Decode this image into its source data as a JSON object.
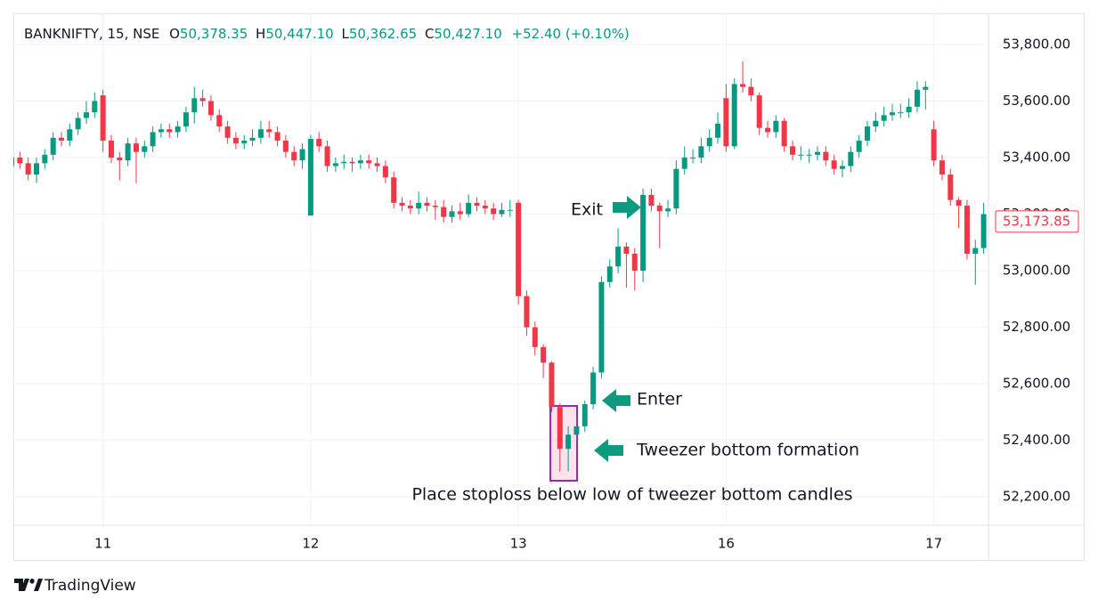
{
  "chart_data": {
    "type": "candlestick",
    "symbol": "BANKNIFTY, 15, NSE",
    "ohlc_legend": [
      {
        "key": "O",
        "value": "50,378.35"
      },
      {
        "key": "H",
        "value": "50,447.10"
      },
      {
        "key": "L",
        "value": "50,362.65"
      },
      {
        "key": "C",
        "value": "50,427.10"
      }
    ],
    "change": "+52.40 (+0.10%)",
    "brand": "TradingView",
    "up_color": "#089981",
    "down_color": "#f23645",
    "last_price_label": "53,173.85",
    "annotations": [
      "Exit",
      "Enter",
      "Tweezer bottom formation",
      "Place stoploss below low of tweezer bottom candles"
    ],
    "ylim": [
      52100,
      53910
    ],
    "yticks": [
      {
        "value": 52200,
        "label": "52,200.00"
      },
      {
        "value": 52400,
        "label": "52,400.00"
      },
      {
        "value": 52600,
        "label": "52,600.00"
      },
      {
        "value": 52800,
        "label": "52,800.00"
      },
      {
        "value": 53000,
        "label": "53,000.00"
      },
      {
        "value": 53200,
        "label": "53,200.00"
      },
      {
        "value": 53400,
        "label": "53,400.00"
      },
      {
        "value": 53600,
        "label": "53,600.00"
      },
      {
        "value": 53800,
        "label": "53,800.00"
      }
    ],
    "grid": true,
    "categories": [
      null,
      null,
      null,
      null,
      null,
      null,
      null,
      null,
      null,
      null,
      null,
      "11",
      null,
      null,
      null,
      null,
      null,
      null,
      null,
      null,
      null,
      null,
      null,
      null,
      null,
      null,
      null,
      null,
      null,
      null,
      null,
      null,
      null,
      null,
      null,
      null,
      "12",
      null,
      null,
      null,
      null,
      null,
      null,
      null,
      null,
      null,
      null,
      null,
      null,
      null,
      null,
      null,
      null,
      null,
      null,
      null,
      null,
      null,
      null,
      null,
      null,
      "13",
      null,
      null,
      null,
      null,
      null,
      null,
      null,
      null,
      null,
      null,
      null,
      null,
      null,
      null,
      null,
      null,
      null,
      null,
      null,
      null,
      null,
      null,
      null,
      null,
      "16",
      null,
      null,
      null,
      null,
      null,
      null,
      null,
      null,
      null,
      null,
      null,
      null,
      null,
      null,
      null,
      null,
      null,
      null,
      null,
      null,
      null,
      null,
      null,
      null,
      "17",
      null,
      null,
      null,
      null,
      null,
      null,
      null
    ],
    "open": [
      53370,
      53400,
      53380,
      53340,
      53380,
      53410,
      53470,
      53460,
      53500,
      53540,
      53560,
      53620,
      53460,
      53400,
      53390,
      53450,
      53420,
      53440,
      53490,
      53500,
      53490,
      53510,
      53560,
      53610,
      53600,
      53550,
      53510,
      53470,
      53450,
      53460,
      53470,
      53500,
      53490,
      53460,
      53420,
      53390,
      53195,
      53466,
      53440,
      53370,
      53380,
      53385,
      53380,
      53390,
      53380,
      53370,
      53330,
      53240,
      53230,
      53220,
      53240,
      53230,
      53225,
      53190,
      53210,
      53200,
      53240,
      53230,
      53220,
      53200,
      53215,
      53240,
      52910,
      52800,
      52730,
      52675,
      52518,
      52370,
      52420,
      52450,
      52528,
      52640,
      52960,
      53015,
      53085,
      53060,
      53000,
      53268,
      53230,
      53210,
      53220,
      53360,
      53400,
      53400,
      53440,
      53470,
      53610,
      53440,
      53660,
      53650,
      53620,
      53505,
      53490,
      53530,
      53440,
      53410,
      53410,
      53410,
      53420,
      53390,
      53360,
      53370,
      53420,
      53460,
      53510,
      53530,
      53550,
      53560,
      53560,
      53580,
      53640,
      53500,
      53390,
      53340,
      53250,
      53230,
      53060,
      53080,
      53200
    ],
    "high": [
      53420,
      53420,
      53400,
      53400,
      53430,
      53490,
      53490,
      53520,
      53560,
      53600,
      53630,
      53640,
      53480,
      53420,
      53470,
      53470,
      53460,
      53510,
      53520,
      53520,
      53530,
      53580,
      53650,
      53640,
      53620,
      53570,
      53530,
      53490,
      53480,
      53500,
      53530,
      53530,
      53510,
      53480,
      53440,
      53450,
      53480,
      53490,
      53460,
      53400,
      53410,
      53400,
      53410,
      53410,
      53400,
      53390,
      53350,
      53260,
      53250,
      53280,
      53260,
      53250,
      53250,
      53230,
      53240,
      53270,
      53260,
      53250,
      53240,
      53240,
      53250,
      53250,
      52930,
      52820,
      52740,
      52680,
      52530,
      52450,
      52480,
      52540,
      52660,
      52980,
      53040,
      53150,
      53100,
      53080,
      53290,
      53290,
      53240,
      53250,
      53390,
      53440,
      53430,
      53470,
      53500,
      53560,
      53660,
      53680,
      53740,
      53680,
      53630,
      53530,
      53550,
      53540,
      53460,
      53440,
      53430,
      53440,
      53440,
      53410,
      53390,
      53440,
      53480,
      53530,
      53560,
      53580,
      53590,
      53590,
      53610,
      53670,
      53670,
      53530,
      53410,
      53360,
      53260,
      53250,
      53110,
      53240,
      53230
    ],
    "low": [
      53350,
      53360,
      53320,
      53310,
      53360,
      53390,
      53440,
      53440,
      53480,
      53520,
      53540,
      53420,
      53380,
      53320,
      53370,
      53310,
      53400,
      53420,
      53470,
      53470,
      53470,
      53490,
      53520,
      53580,
      53530,
      53490,
      53450,
      53430,
      53430,
      53440,
      53450,
      53470,
      53440,
      53400,
      53370,
      53360,
      53195,
      53420,
      53350,
      53350,
      53360,
      53350,
      53360,
      53360,
      53350,
      53310,
      53220,
      53210,
      53200,
      53200,
      53210,
      53180,
      53170,
      53170,
      53180,
      53190,
      53210,
      53200,
      53180,
      53190,
      53190,
      52880,
      52770,
      52700,
      52620,
      52500,
      52290,
      52290,
      52400,
      52430,
      52510,
      52620,
      52940,
      52990,
      52940,
      52930,
      52960,
      53210,
      53080,
      53190,
      53200,
      53340,
      53380,
      53380,
      53420,
      53450,
      53420,
      53430,
      53630,
      53600,
      53480,
      53470,
      53470,
      53420,
      53390,
      53390,
      53380,
      53390,
      53370,
      53340,
      53330,
      53350,
      53400,
      53440,
      53490,
      53510,
      53530,
      53540,
      53540,
      53560,
      53570,
      53370,
      53320,
      53230,
      53150,
      53040,
      52950,
      53060,
      53160
    ],
    "close": [
      53400,
      53380,
      53340,
      53380,
      53410,
      53470,
      53460,
      53500,
      53540,
      53560,
      53600,
      53460,
      53400,
      53390,
      53450,
      53420,
      53440,
      53490,
      53500,
      53490,
      53510,
      53560,
      53610,
      53600,
      53550,
      53510,
      53470,
      53450,
      53460,
      53470,
      53500,
      53490,
      53460,
      53420,
      53390,
      53430,
      53466,
      53440,
      53370,
      53380,
      53385,
      53380,
      53390,
      53380,
      53370,
      53330,
      53240,
      53230,
      53220,
      53240,
      53230,
      53225,
      53190,
      53210,
      53200,
      53240,
      53230,
      53220,
      53200,
      53215,
      53215,
      52910,
      52800,
      52730,
      52675,
      52518,
      52370,
      52420,
      52450,
      52528,
      52640,
      52960,
      53015,
      53085,
      53060,
      53000,
      53268,
      53230,
      53210,
      53220,
      53360,
      53400,
      53400,
      53440,
      53470,
      53520,
      53440,
      53660,
      53650,
      53620,
      53505,
      53490,
      53530,
      53440,
      53410,
      53410,
      53410,
      53420,
      53390,
      53360,
      53370,
      53420,
      53460,
      53510,
      53530,
      53550,
      53560,
      53560,
      53580,
      53640,
      53650,
      53390,
      53340,
      53250,
      53230,
      53060,
      53080,
      53200,
      53173.85
    ]
  }
}
